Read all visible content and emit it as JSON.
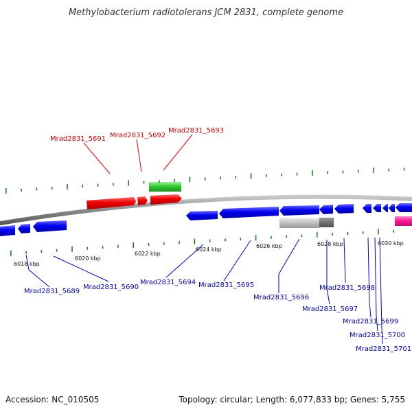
{
  "title": "Methylobacterium radiotolerans JCM 2831, complete genome",
  "footer": {
    "accession": "Accession: NC_010505",
    "summary": "Topology: circular; Length: 6,077,833 bp; Genes: 5,755"
  },
  "colors": {
    "forward_label": "#cc0000",
    "reverse_label": "#0000aa",
    "forward_gene": "#ee0000",
    "reverse_gene": "#0000ee",
    "rna_gene": "#33cc33",
    "pseudo_gene": "#bbbbbb",
    "misc_gene": "#ff1493",
    "tick": "#227722",
    "backbone": "#888888"
  },
  "scale_labels": [
    {
      "text": "6018 kbp",
      "kbp": 6018
    },
    {
      "text": "6020 kbp",
      "kbp": 6020
    },
    {
      "text": "6022 kbp",
      "kbp": 6022
    },
    {
      "text": "6024 kbp",
      "kbp": 6024
    },
    {
      "text": "6026 kbp",
      "kbp": 6026
    },
    {
      "text": "6028 kbp",
      "kbp": 6028
    },
    {
      "text": "6030 kbp",
      "kbp": 6030
    }
  ],
  "forward_labels": [
    "Mrad2831_5691",
    "Mrad2831_5692",
    "Mrad2831_5693"
  ],
  "reverse_labels": [
    "Mrad2831_5689",
    "Mrad2831_5690",
    "Mrad2831_5694",
    "Mrad2831_5695",
    "Mrad2831_5696",
    "Mrad2831_5697",
    "Mrad2831_5698",
    "Mrad2831_5699",
    "Mrad2831_5700",
    "Mrad2831_5701"
  ]
}
